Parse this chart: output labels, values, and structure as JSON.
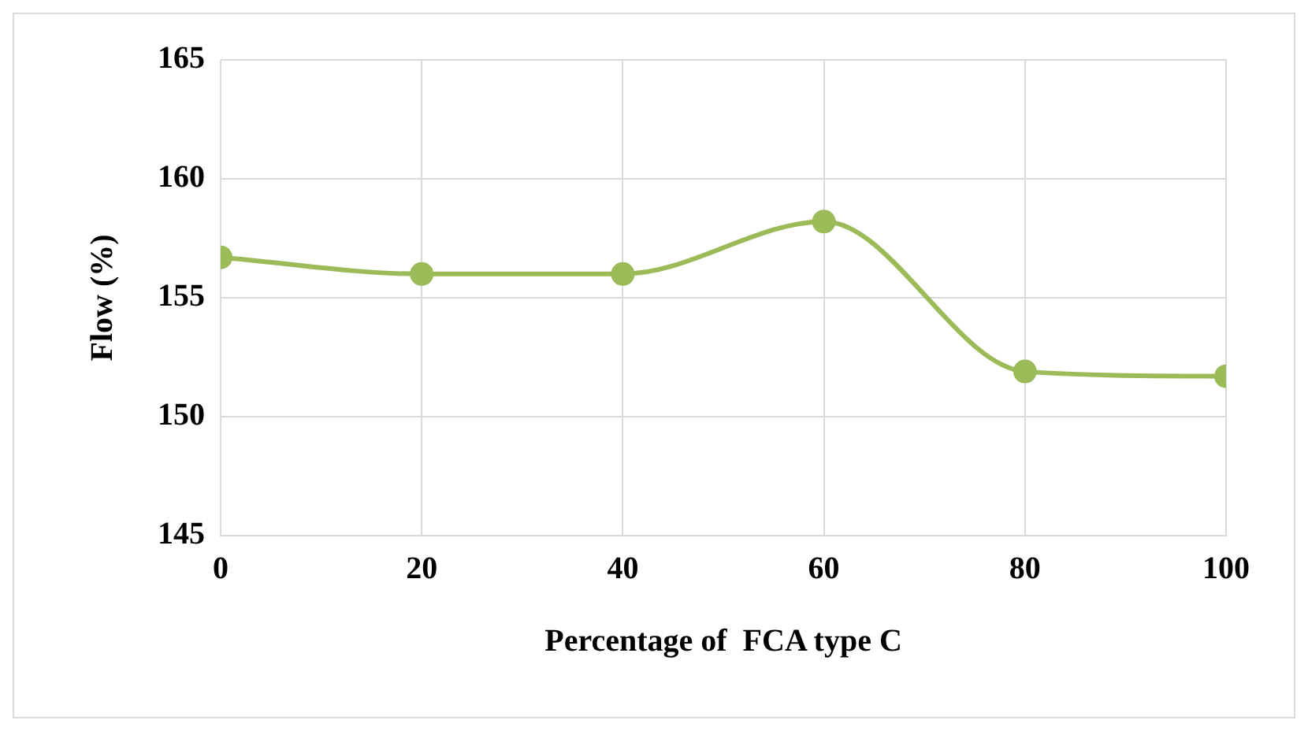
{
  "chart_data": {
    "type": "line",
    "xlabel": "Percentage of  FCA type C",
    "ylabel": "Flow (%)",
    "x": [
      0,
      20,
      40,
      60,
      80,
      100
    ],
    "series": [
      {
        "color": "#9bbb59",
        "values": [
          156.7,
          156.0,
          156.0,
          158.2,
          151.9,
          151.7
        ]
      }
    ],
    "xlim": [
      0,
      100
    ],
    "xticks": [
      0,
      20,
      40,
      60,
      80,
      100
    ],
    "ylim": [
      145,
      165
    ],
    "yticks": [
      145,
      150,
      155,
      160,
      165
    ],
    "grid": true,
    "legend": false,
    "marker": "circle",
    "line_style": "solid"
  }
}
